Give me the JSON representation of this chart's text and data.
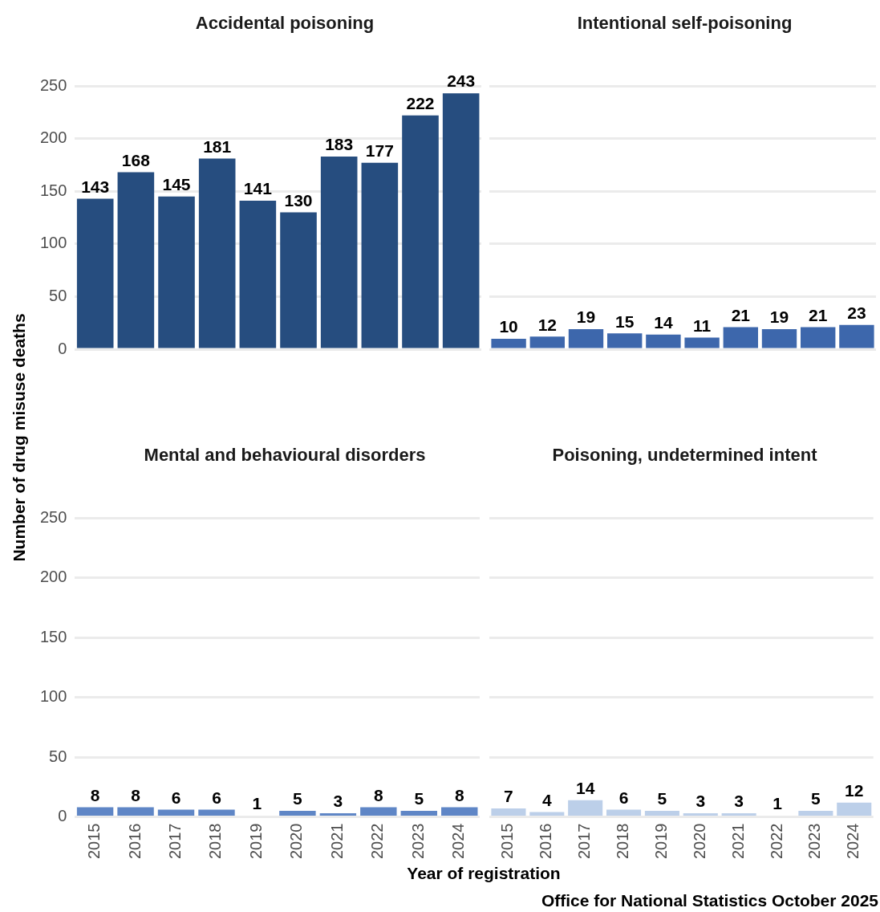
{
  "chart_data": [
    {
      "type": "bar",
      "title": "Accidental poisoning",
      "ylabel": "Number of drug misuse deaths",
      "categories": [
        "2015",
        "2016",
        "2017",
        "2018",
        "2019",
        "2020",
        "2021",
        "2022",
        "2023",
        "2024"
      ],
      "values": [
        143,
        168,
        145,
        181,
        141,
        130,
        183,
        177,
        222,
        243
      ],
      "color": "#264d7f",
      "ylim": [
        0,
        250
      ],
      "yticks": [
        0,
        50,
        100,
        150,
        200,
        250
      ],
      "grid": "y",
      "data_labels": true,
      "tick_labels": "y"
    },
    {
      "type": "bar",
      "title": "Intentional self-poisoning",
      "categories": [
        "2015",
        "2016",
        "2017",
        "2018",
        "2019",
        "2020",
        "2021",
        "2022",
        "2023",
        "2024"
      ],
      "values": [
        10,
        12,
        19,
        15,
        14,
        11,
        21,
        19,
        21,
        23
      ],
      "color": "#3d67ac",
      "ylim": [
        0,
        250
      ],
      "yticks": [
        0,
        50,
        100,
        150,
        200,
        250
      ],
      "grid": "y",
      "data_labels": true,
      "tick_labels": false
    },
    {
      "type": "bar",
      "title": "Mental and behavioural disorders",
      "xlabel": "Year of registration",
      "categories": [
        "2015",
        "2016",
        "2017",
        "2018",
        "2019",
        "2020",
        "2021",
        "2022",
        "2023",
        "2024"
      ],
      "values": [
        8,
        8,
        6,
        6,
        1,
        5,
        3,
        8,
        5,
        8
      ],
      "color": "#5f86c6",
      "ylim": [
        0,
        250
      ],
      "yticks": [
        0,
        50,
        100,
        150,
        200,
        250
      ],
      "grid": "y",
      "data_labels": true
    },
    {
      "type": "bar",
      "title": "Poisoning, undetermined intent",
      "categories": [
        "2015",
        "2016",
        "2017",
        "2018",
        "2019",
        "2020",
        "2021",
        "2022",
        "2023",
        "2024"
      ],
      "values": [
        7,
        4,
        14,
        6,
        5,
        3,
        3,
        1,
        5,
        12
      ],
      "color": "#bccfe9",
      "ylim": [
        0,
        250
      ],
      "yticks": [
        0,
        50,
        100,
        150,
        200,
        250
      ],
      "grid": "y",
      "data_labels": true,
      "tick_labels": "x",
      "annotations": [
        "Office for National Statistics October 2025"
      ]
    }
  ]
}
